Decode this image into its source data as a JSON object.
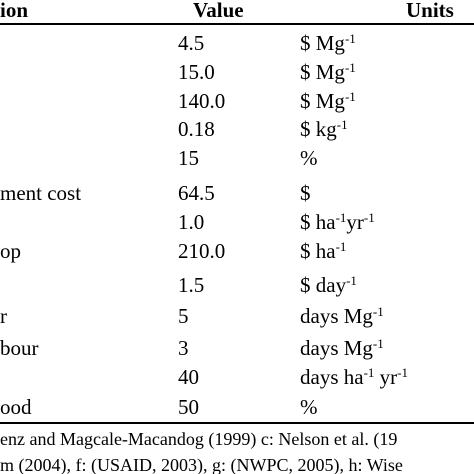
{
  "table": {
    "header": [
      "ion",
      "Value",
      "Units"
    ],
    "rows": [
      {
        "value": "4.5",
        "units": [
          "$ Mg",
          "-1"
        ]
      },
      {
        "value": "15.0",
        "units": [
          "$ Mg",
          "-1"
        ]
      },
      {
        "value": "140.0",
        "units": [
          "$ Mg",
          "-1"
        ]
      },
      {
        "value": "0.18",
        "units": [
          "$ kg",
          "-1"
        ]
      },
      {
        "value": "15",
        "units": [
          "%"
        ]
      },
      {
        "description": "ment cost",
        "value": "64.5",
        "units": [
          "$"
        ]
      },
      {
        "value": "1.0",
        "units": [
          "$  ha",
          "-1",
          "yr",
          "-1"
        ]
      },
      {
        "description": "op",
        "value": "210.0",
        "units": [
          "$ ha",
          "-1"
        ]
      },
      {
        "value": "1.5",
        "units": [
          "$ day",
          "-1"
        ]
      },
      {
        "description": "r",
        "value": "5",
        "units": [
          "days Mg",
          "-1"
        ]
      },
      {
        "description": "bour",
        "value": "3",
        "units": [
          "days Mg",
          "-1"
        ]
      },
      {
        "value": "40",
        "units": [
          "days ha",
          "-1",
          " yr",
          "-1"
        ]
      },
      {
        "description": "ood",
        "value": "50",
        "units": [
          "%"
        ]
      }
    ]
  },
  "footnotes": [
    "enz and Magcale-Macandog (1999) c: Nelson et al. (19",
    "m (2004), f: (USAID, 2003), g: (NWPC, 2005), h: Wise"
  ]
}
